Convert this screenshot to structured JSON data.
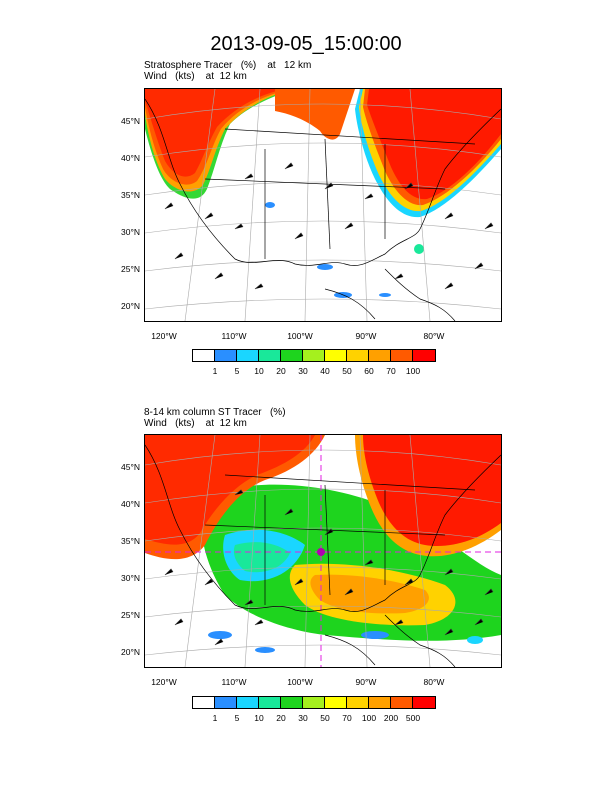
{
  "title": "2013-09-05_15:00:00",
  "panels": [
    {
      "sub1": "Stratosphere Tracer   (%)    at   12 km",
      "sub2": "Wind   (kts)    at  12 km",
      "lat_labels": [
        "45°N",
        "40°N",
        "35°N",
        "30°N",
        "25°N",
        "20°N"
      ],
      "lon_labels": [
        "120°W",
        "110°W",
        "100°W",
        "90°W",
        "80°W"
      ],
      "colorbar": {
        "colors": [
          "#ffffff",
          "#2a8fff",
          "#1ad6ff",
          "#19e89a",
          "#1ed41e",
          "#a5f01e",
          "#ffff00",
          "#ffd200",
          "#ffa000",
          "#ff5a00",
          "#ff0000"
        ],
        "labels": [
          "1",
          "5",
          "10",
          "20",
          "30",
          "40",
          "50",
          "60",
          "70",
          "100"
        ]
      }
    },
    {
      "sub1": "8-14 km column ST Tracer   (%)",
      "sub2": "Wind   (kts)    at  12 km",
      "lat_labels": [
        "45°N",
        "40°N",
        "35°N",
        "30°N",
        "25°N",
        "20°N"
      ],
      "lon_labels": [
        "120°W",
        "110°W",
        "100°W",
        "90°W",
        "80°W"
      ],
      "colorbar": {
        "colors": [
          "#ffffff",
          "#2a8fff",
          "#1ad6ff",
          "#19e89a",
          "#1ed41e",
          "#a5f01e",
          "#ffff00",
          "#ffd200",
          "#ffa000",
          "#ff5a00",
          "#ff0000"
        ],
        "labels": [
          "1",
          "5",
          "10",
          "20",
          "30",
          "50",
          "70",
          "100",
          "200",
          "500"
        ]
      }
    }
  ]
}
